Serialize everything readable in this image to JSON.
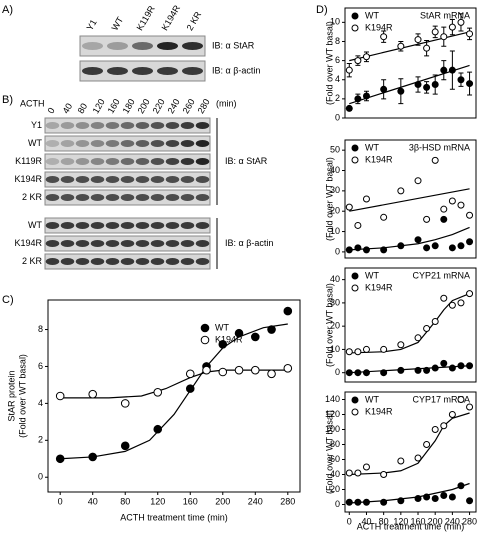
{
  "panel_labels": [
    "A)",
    "B)",
    "C)",
    "D)"
  ],
  "blot_a": {
    "lanes": [
      "Y1",
      "WT",
      "K119R",
      "K194R",
      "2 KR"
    ],
    "rows": [
      "IB: α StAR",
      "IB: α β-actin"
    ]
  },
  "blot_b": {
    "treatment": "ACTH",
    "times": [
      "0",
      "40",
      "80",
      "120",
      "160",
      "180",
      "200",
      "220",
      "240",
      "260",
      "280"
    ],
    "unit": "(min)",
    "star_rows": [
      "Y1",
      "WT",
      "K119R",
      "K194R",
      "2 KR"
    ],
    "star_antibody": "IB: α StAR",
    "actin_rows": [
      "WT",
      "K194R",
      "2 KR"
    ],
    "actin_antibody": "IB: α β-actin"
  },
  "chart_data": [
    {
      "type": "scatter",
      "ylabel": [
        "StAR protein",
        "(Fold over WT basal)"
      ],
      "xlabel": "ACTH treatment time (min)",
      "xlim": [
        -15,
        295
      ],
      "ylim": [
        -0.8,
        9.6
      ],
      "xticks": [
        0,
        40,
        80,
        120,
        160,
        200,
        240,
        280
      ],
      "yticks": [
        0,
        2,
        4,
        6,
        8
      ],
      "legend": "upper right",
      "x": [
        0,
        40,
        80,
        120,
        160,
        180,
        200,
        220,
        240,
        260,
        280
      ],
      "series": [
        {
          "name": "WT",
          "color": "#000000",
          "marker": "filled",
          "values": [
            1.0,
            1.1,
            1.7,
            2.6,
            4.8,
            6.0,
            7.2,
            7.8,
            7.6,
            8.0,
            9.0
          ],
          "fit": {
            "x": [
              0,
              40,
              80,
              110,
              140,
              160,
              180,
              200,
              220,
              250,
              280
            ],
            "values": [
              1.0,
              1.1,
              1.4,
              2.0,
              3.4,
              4.7,
              6.0,
              7.0,
              7.6,
              8.1,
              8.3
            ]
          }
        },
        {
          "name": "K194R",
          "color": "#000000",
          "marker": "open",
          "values": [
            4.4,
            4.5,
            4.0,
            4.6,
            5.6,
            5.8,
            5.7,
            5.8,
            5.8,
            5.6,
            5.9
          ],
          "fit": {
            "x": [
              0,
              60,
              100,
              130,
              160,
              180,
              200,
              240,
              280
            ],
            "values": [
              4.3,
              4.3,
              4.4,
              4.8,
              5.4,
              5.7,
              5.8,
              5.8,
              5.8
            ]
          }
        }
      ]
    },
    {
      "type": "scatter",
      "title": "StAR mRNA",
      "ylabel": [
        "(Fold over WT basal)"
      ],
      "xlim": [
        -10,
        295
      ],
      "ylim": [
        0,
        11.5
      ],
      "yticks": [
        0,
        2,
        4,
        6,
        8,
        10
      ],
      "legend": "upper left",
      "x": [
        0,
        20,
        40,
        80,
        120,
        160,
        180,
        200,
        220,
        240,
        260,
        280
      ],
      "series": [
        {
          "name": "WT",
          "color": "#000000",
          "marker": "filled",
          "values": [
            1.0,
            2.0,
            2.3,
            3.0,
            2.8,
            3.5,
            3.2,
            3.5,
            5.0,
            5.0,
            4.0,
            3.6
          ],
          "errors": [
            0.2,
            0.5,
            0.5,
            1.0,
            1.3,
            0.8,
            0.6,
            1.0,
            1.0,
            2.0,
            0.7,
            1.2
          ],
          "fit": {
            "x": [
              0,
              280
            ],
            "values": [
              1.5,
              5.5
            ]
          }
        },
        {
          "name": "K194R",
          "color": "#000000",
          "marker": "open",
          "values": [
            5.0,
            6.0,
            6.4,
            8.5,
            7.5,
            8.2,
            7.3,
            9.0,
            8.5,
            9.5,
            10.0,
            8.8
          ],
          "errors": [
            0.7,
            0.5,
            0.5,
            0.6,
            0.5,
            0.6,
            0.8,
            0.6,
            1.0,
            0.8,
            0.9,
            0.6
          ],
          "fit": {
            "x": [
              0,
              280
            ],
            "values": [
              6.0,
              9.0
            ]
          }
        }
      ]
    },
    {
      "type": "scatter",
      "title": "3β-HSD mRNA",
      "ylabel": [
        "(Fold over WT basal)"
      ],
      "xlim": [
        -10,
        295
      ],
      "ylim": [
        -3,
        55
      ],
      "yticks": [
        0,
        10,
        20,
        30,
        40,
        50
      ],
      "legend": "upper left",
      "x": [
        0,
        20,
        40,
        80,
        120,
        160,
        180,
        200,
        220,
        240,
        260,
        280
      ],
      "series": [
        {
          "name": "WT",
          "color": "#000000",
          "marker": "filled",
          "values": [
            1,
            2,
            1,
            1,
            3,
            6,
            2,
            3,
            16,
            2,
            3,
            5
          ],
          "fit": {
            "x": [
              0,
              80,
              160,
              200,
              240,
              280
            ],
            "values": [
              1,
              2,
              4,
              6,
              8.5,
              12
            ]
          }
        },
        {
          "name": "K194R",
          "color": "#000000",
          "marker": "open",
          "values": [
            22,
            13,
            26,
            17,
            30,
            35,
            16,
            45,
            21,
            25,
            23,
            18
          ],
          "fit": {
            "x": [
              0,
              280
            ],
            "values": [
              20,
              31
            ]
          }
        }
      ]
    },
    {
      "type": "scatter",
      "title": "CYP21 mRNA",
      "ylabel": [
        "(Fold over WT basal)"
      ],
      "xlim": [
        -10,
        295
      ],
      "ylim": [
        -4,
        45
      ],
      "yticks": [
        0,
        10,
        20,
        30,
        40
      ],
      "legend": "upper left",
      "x": [
        0,
        20,
        40,
        80,
        120,
        160,
        180,
        200,
        220,
        240,
        260,
        280
      ],
      "series": [
        {
          "name": "WT",
          "color": "#000000",
          "marker": "filled",
          "values": [
            0,
            0,
            0,
            0,
            1,
            1,
            1,
            2,
            4,
            2,
            3,
            3
          ],
          "fit": {
            "x": [
              0,
              280
            ],
            "values": [
              0,
              3
            ]
          }
        },
        {
          "name": "K194R",
          "color": "#000000",
          "marker": "open",
          "values": [
            9,
            9,
            10,
            10,
            12,
            15,
            19,
            22,
            32,
            29,
            30,
            34
          ],
          "fit": {
            "x": [
              0,
              80,
              120,
              160,
              200,
              220,
              240,
              280
            ],
            "values": [
              8.5,
              9,
              10,
              13,
              22,
              27,
              31,
              34
            ]
          }
        }
      ]
    },
    {
      "type": "scatter",
      "title": "CYP17 mRNA",
      "ylabel": [
        "(Fold over WT basal)"
      ],
      "xlabel": "ACTH treatment time (min)",
      "xlim": [
        -10,
        295
      ],
      "ylim": [
        -10,
        150
      ],
      "xticks": [
        0,
        40,
        80,
        120,
        160,
        200,
        240,
        280
      ],
      "yticks": [
        0,
        20,
        40,
        60,
        80,
        100,
        120,
        140
      ],
      "legend": "upper left",
      "x": [
        0,
        20,
        40,
        80,
        120,
        160,
        180,
        200,
        220,
        240,
        260,
        280
      ],
      "series": [
        {
          "name": "WT",
          "color": "#000000",
          "marker": "filled",
          "values": [
            3,
            3,
            3,
            3,
            5,
            8,
            10,
            8,
            12,
            10,
            25,
            5
          ],
          "fit": {
            "x": [
              0,
              80,
              160,
              200,
              240,
              280
            ],
            "values": [
              2,
              5,
              10,
              15,
              20,
              28
            ]
          }
        },
        {
          "name": "K194R",
          "color": "#000000",
          "marker": "open",
          "values": [
            42,
            42,
            50,
            40,
            58,
            62,
            80,
            100,
            105,
            120,
            140,
            130
          ],
          "fit": {
            "x": [
              0,
              80,
              120,
              160,
              200,
              220,
              240,
              280
            ],
            "values": [
              40,
              42,
              45,
              55,
              85,
              105,
              115,
              122
            ]
          }
        }
      ]
    }
  ]
}
